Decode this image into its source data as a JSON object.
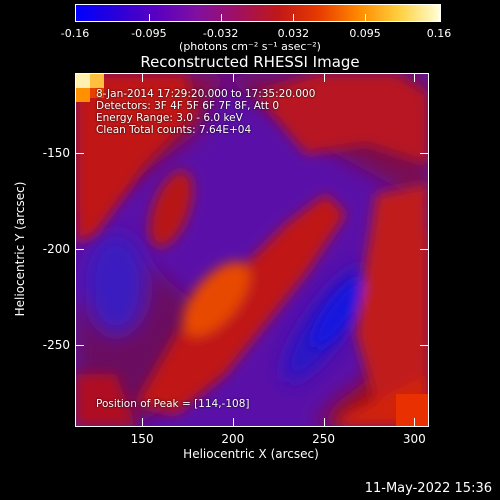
{
  "colorbar": {
    "ticks": [
      "-0.16",
      "-0.095",
      "-0.032",
      "0.032",
      "0.095",
      "0.16"
    ],
    "tick_values": [
      -0.16,
      -0.095,
      -0.032,
      0.032,
      0.095,
      0.16
    ],
    "units": "(photons cm⁻² s⁻¹ asec⁻²)",
    "colormap": [
      "#0000ff",
      "#2a00d8",
      "#5a00c0",
      "#8010a0",
      "#a01060",
      "#c01818",
      "#e83a00",
      "#ff8a00",
      "#ffd040",
      "#ffffd8"
    ]
  },
  "title": "Reconstructed RHESSI Image",
  "annotations": {
    "time_range": "8-Jan-2014 17:29:20.000 to 17:35:20.000",
    "detectors": "Detectors: 3F 4F 5F 6F 7F 8F, Att 0",
    "energy": "Energy Range: 3.0 - 6.0 keV",
    "clean": "Clean     Total counts: 7.64E+04",
    "peak": "Position of Peak = [114,-108]"
  },
  "axes": {
    "x_label": "Heliocentric X (arcsec)",
    "y_label": "Heliocentric Y (arcsec)",
    "x_ticks": [
      "150",
      "200",
      "250",
      "300"
    ],
    "x_tick_values": [
      150,
      200,
      250,
      300
    ],
    "y_ticks": [
      "-150",
      "-200",
      "-250"
    ],
    "y_tick_values": [
      -150,
      -200,
      -250
    ],
    "xlim": [
      113,
      307
    ],
    "ylim": [
      -292,
      -108
    ]
  },
  "date_stamp": "11-May-2022 15:36"
}
